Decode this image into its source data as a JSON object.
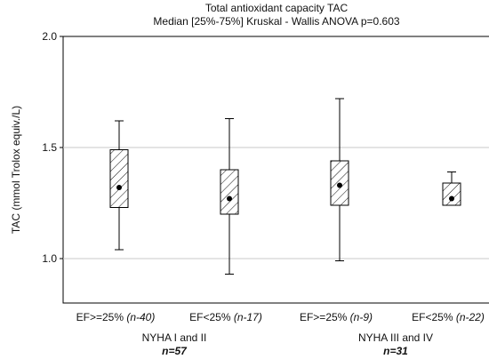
{
  "chart_data": {
    "type": "boxplot",
    "title": "Total antioxidant capacity TAC",
    "subtitle": "Median [25%-75%] Kruskal - Wallis ANOVA p=0.603",
    "ylabel": "TAC (mmol Trolox equiv./L)",
    "xlabel": "",
    "ylim": [
      0.8,
      2.0
    ],
    "yticks": [
      "1.0",
      "1.5",
      "2.0"
    ],
    "grid": true,
    "categories": [
      {
        "label": "EF>=25%",
        "n": "(n-40)"
      },
      {
        "label": "EF<25%",
        "n": "(n-17)"
      },
      {
        "label": "EF>=25%",
        "n": "(n-9)"
      },
      {
        "label": "EF<25%",
        "n": "(n-22)"
      }
    ],
    "groups": [
      {
        "label": "NYHA I and II",
        "n": "n=57"
      },
      {
        "label": "NYHA III and IV",
        "n": "n=31"
      }
    ],
    "boxes": [
      {
        "median": 1.32,
        "q1": 1.23,
        "q3": 1.49,
        "min": 1.04,
        "max": 1.62
      },
      {
        "median": 1.27,
        "q1": 1.2,
        "q3": 1.4,
        "min": 0.93,
        "max": 1.63
      },
      {
        "median": 1.33,
        "q1": 1.24,
        "q3": 1.44,
        "min": 0.99,
        "max": 1.72
      },
      {
        "median": 1.27,
        "q1": 1.24,
        "q3": 1.34,
        "min": 1.24,
        "max": 1.39
      }
    ]
  }
}
